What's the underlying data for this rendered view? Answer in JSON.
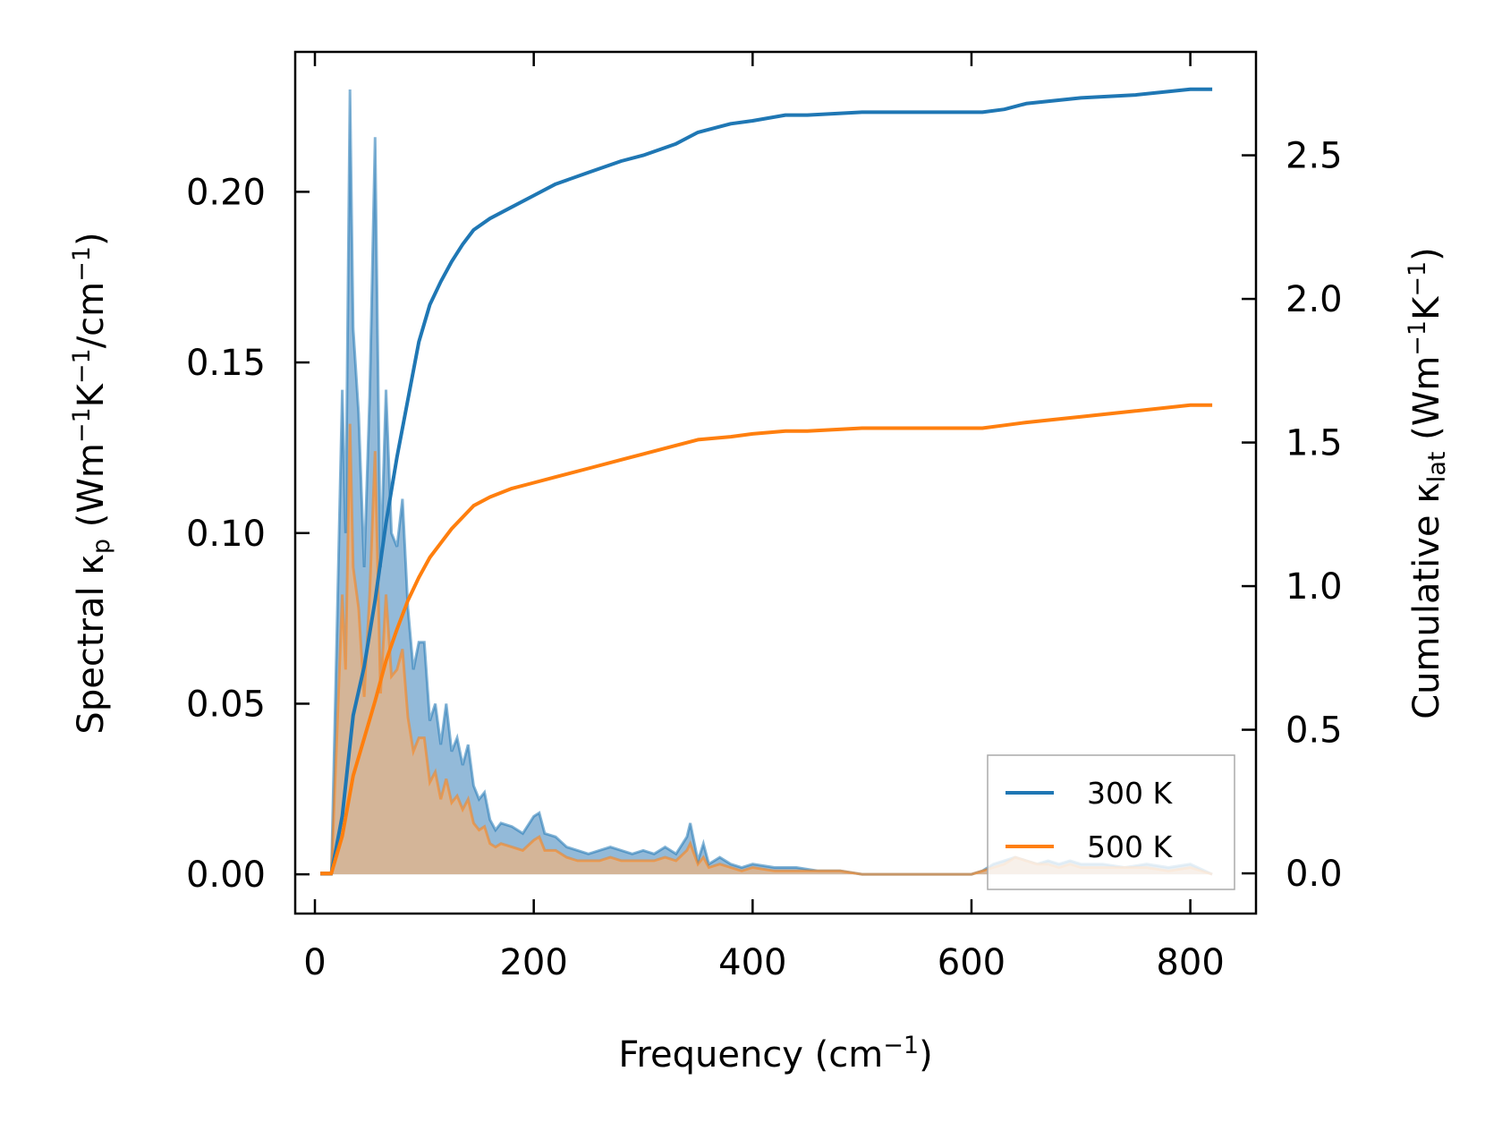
{
  "chart_data": {
    "type": "line",
    "x_axis": {
      "label_parts": [
        {
          "t": "Frequency (cm",
          "s": "n"
        },
        {
          "t": "−1",
          "s": "sup"
        },
        {
          "t": ")",
          "s": "n"
        }
      ],
      "range": [
        -18,
        860
      ],
      "ticks": [
        0,
        200,
        400,
        600,
        800
      ],
      "tick_labels": [
        "0",
        "200",
        "400",
        "600",
        "800"
      ]
    },
    "y_left": {
      "label_parts": [
        {
          "t": "Spectral κ",
          "s": "n"
        },
        {
          "t": "p",
          "s": "sub"
        },
        {
          "t": " (Wm",
          "s": "n"
        },
        {
          "t": "−1",
          "s": "sup"
        },
        {
          "t": "K",
          "s": "n"
        },
        {
          "t": "−1",
          "s": "sup"
        },
        {
          "t": "/cm",
          "s": "n"
        },
        {
          "t": "−1",
          "s": "sup"
        },
        {
          "t": ")",
          "s": "n"
        }
      ],
      "range": [
        -0.0115,
        0.241
      ],
      "ticks": [
        0,
        0.05,
        0.1,
        0.15,
        0.2
      ],
      "tick_labels": [
        "0.00",
        "0.05",
        "0.10",
        "0.15",
        "0.20"
      ]
    },
    "y_right": {
      "label_parts": [
        {
          "t": "Cumulative κ",
          "s": "n"
        },
        {
          "t": "lat",
          "s": "sub"
        },
        {
          "t": " (Wm",
          "s": "n"
        },
        {
          "t": "−1",
          "s": "sup"
        },
        {
          "t": "K",
          "s": "n"
        },
        {
          "t": "−1",
          "s": "sup"
        },
        {
          "t": ")",
          "s": "n"
        }
      ],
      "range": [
        -0.14,
        2.86
      ],
      "ticks": [
        0,
        0.5,
        1.0,
        1.5,
        2.0,
        2.5
      ],
      "tick_labels": [
        "0.0",
        "0.5",
        "1.0",
        "1.5",
        "2.0",
        "2.5"
      ]
    },
    "legend": {
      "placement": "lower-right",
      "entries": [
        "300 K",
        "500 K"
      ]
    },
    "series": [
      {
        "name": "300 K",
        "color": "#1f77b4",
        "fill_color": "#6fa3cc",
        "spectral": {
          "x": [
            5,
            15,
            20,
            25,
            28,
            32,
            35,
            40,
            45,
            50,
            55,
            60,
            65,
            70,
            75,
            80,
            85,
            90,
            95,
            100,
            105,
            110,
            115,
            120,
            125,
            130,
            135,
            140,
            145,
            150,
            155,
            160,
            165,
            170,
            180,
            190,
            200,
            205,
            210,
            220,
            230,
            240,
            250,
            260,
            270,
            280,
            290,
            300,
            310,
            320,
            330,
            340,
            343,
            350,
            355,
            360,
            370,
            380,
            390,
            400,
            420,
            440,
            460,
            480,
            500,
            600,
            610,
            620,
            630,
            640,
            650,
            660,
            670,
            680,
            690,
            700,
            720,
            740,
            760,
            780,
            800,
            820
          ],
          "y": [
            0,
            0,
            0.07,
            0.142,
            0.1,
            0.23,
            0.16,
            0.135,
            0.09,
            0.14,
            0.216,
            0.09,
            0.142,
            0.1,
            0.096,
            0.11,
            0.078,
            0.06,
            0.068,
            0.068,
            0.045,
            0.05,
            0.038,
            0.05,
            0.036,
            0.04,
            0.032,
            0.038,
            0.026,
            0.022,
            0.024,
            0.016,
            0.013,
            0.015,
            0.014,
            0.012,
            0.017,
            0.018,
            0.012,
            0.011,
            0.008,
            0.007,
            0.006,
            0.007,
            0.008,
            0.007,
            0.006,
            0.007,
            0.006,
            0.008,
            0.006,
            0.011,
            0.015,
            0.004,
            0.009,
            0.003,
            0.005,
            0.003,
            0.002,
            0.003,
            0.002,
            0.002,
            0.001,
            0.001,
            0,
            0,
            0.001,
            0.003,
            0.004,
            0.005,
            0.004,
            0.003,
            0.004,
            0.003,
            0.004,
            0.003,
            0.003,
            0.002,
            0.003,
            0.002,
            0.003,
            0
          ]
        },
        "cumulative": {
          "x": [
            5,
            15,
            25,
            35,
            45,
            55,
            65,
            75,
            85,
            95,
            105,
            115,
            125,
            135,
            145,
            160,
            180,
            200,
            220,
            250,
            280,
            300,
            330,
            350,
            380,
            400,
            430,
            450,
            500,
            550,
            600,
            610,
            630,
            650,
            700,
            750,
            800,
            820
          ],
          "y": [
            0,
            0,
            0.2,
            0.55,
            0.72,
            0.95,
            1.22,
            1.45,
            1.65,
            1.85,
            1.98,
            2.06,
            2.13,
            2.19,
            2.24,
            2.28,
            2.32,
            2.36,
            2.4,
            2.44,
            2.48,
            2.5,
            2.54,
            2.58,
            2.61,
            2.62,
            2.64,
            2.64,
            2.65,
            2.65,
            2.65,
            2.65,
            2.66,
            2.68,
            2.7,
            2.71,
            2.73,
            2.73
          ]
        }
      },
      {
        "name": "500 K",
        "color": "#ff7f0e",
        "fill_color": "#e9b381",
        "spectral": {
          "x": [
            5,
            15,
            20,
            25,
            28,
            32,
            35,
            40,
            45,
            50,
            55,
            60,
            65,
            70,
            75,
            80,
            85,
            90,
            95,
            100,
            105,
            110,
            115,
            120,
            125,
            130,
            135,
            140,
            145,
            150,
            155,
            160,
            165,
            170,
            180,
            190,
            200,
            205,
            210,
            220,
            230,
            240,
            250,
            260,
            270,
            280,
            290,
            300,
            310,
            320,
            330,
            340,
            343,
            350,
            355,
            360,
            370,
            380,
            390,
            400,
            420,
            440,
            460,
            480,
            500,
            600,
            610,
            620,
            630,
            640,
            650,
            660,
            670,
            680,
            690,
            700,
            720,
            740,
            760,
            780,
            800,
            820
          ],
          "y": [
            0,
            0,
            0.04,
            0.082,
            0.06,
            0.132,
            0.09,
            0.078,
            0.052,
            0.082,
            0.124,
            0.053,
            0.082,
            0.058,
            0.06,
            0.066,
            0.046,
            0.036,
            0.04,
            0.04,
            0.027,
            0.03,
            0.022,
            0.028,
            0.021,
            0.023,
            0.019,
            0.022,
            0.015,
            0.013,
            0.014,
            0.009,
            0.008,
            0.009,
            0.008,
            0.007,
            0.01,
            0.011,
            0.007,
            0.007,
            0.005,
            0.004,
            0.004,
            0.004,
            0.005,
            0.004,
            0.004,
            0.004,
            0.004,
            0.005,
            0.004,
            0.007,
            0.009,
            0.003,
            0.005,
            0.002,
            0.003,
            0.002,
            0.001,
            0.002,
            0.001,
            0.001,
            0.001,
            0.001,
            0,
            0,
            0.001,
            0.002,
            0.003,
            0.005,
            0.004,
            0.003,
            0.003,
            0.002,
            0.003,
            0.002,
            0.002,
            0.002,
            0.002,
            0.001,
            0.002,
            0
          ]
        },
        "cumulative": {
          "x": [
            5,
            15,
            25,
            35,
            45,
            55,
            65,
            75,
            85,
            95,
            105,
            115,
            125,
            135,
            145,
            160,
            180,
            200,
            220,
            250,
            280,
            300,
            330,
            350,
            380,
            400,
            430,
            450,
            500,
            550,
            600,
            610,
            630,
            650,
            700,
            750,
            800,
            820
          ],
          "y": [
            0,
            0,
            0.13,
            0.34,
            0.47,
            0.6,
            0.74,
            0.85,
            0.95,
            1.03,
            1.1,
            1.15,
            1.2,
            1.24,
            1.28,
            1.31,
            1.34,
            1.36,
            1.38,
            1.41,
            1.44,
            1.46,
            1.49,
            1.51,
            1.52,
            1.53,
            1.54,
            1.54,
            1.55,
            1.55,
            1.55,
            1.55,
            1.56,
            1.57,
            1.59,
            1.61,
            1.63,
            1.63
          ]
        }
      }
    ]
  }
}
